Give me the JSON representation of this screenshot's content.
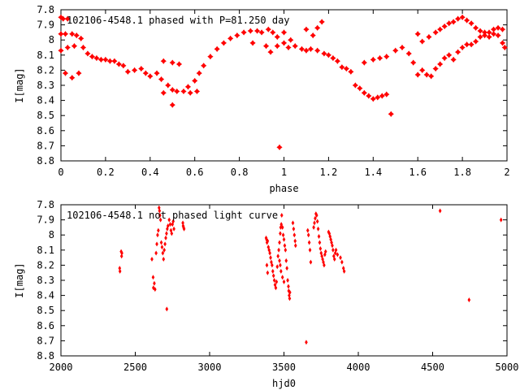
{
  "chart_data": [
    {
      "type": "scatter",
      "title": "102106-4548.1 phased with P=81.250 day",
      "xlabel": "phase",
      "ylabel": "I[mag]",
      "xlim": [
        0,
        2
      ],
      "ylim": [
        7.8,
        8.8
      ],
      "y_reversed": true,
      "x_ticks": [
        0,
        0.2,
        0.4,
        0.6,
        0.8,
        1,
        1.2,
        1.4,
        1.6,
        1.8,
        2
      ],
      "x_tick_labels": [
        "0",
        "0.2",
        "0.4",
        "0.6",
        "0.8",
        "1",
        "1.2",
        "1.4",
        "1.6",
        "1.8",
        "2"
      ],
      "y_ticks": [
        7.8,
        7.9,
        8,
        8.1,
        8.2,
        8.3,
        8.4,
        8.5,
        8.6,
        8.7,
        8.8
      ],
      "y_tick_labels": [
        "7.8",
        "7.9",
        "8",
        "8.1",
        "8.2",
        "8.3",
        "8.4",
        "8.5",
        "8.6",
        "8.7",
        "8.8"
      ],
      "marker_color": "#ff0000",
      "marker": "star",
      "points": [
        [
          0.0,
          7.85
        ],
        [
          0.01,
          7.86
        ],
        [
          0.03,
          7.86
        ],
        [
          0.0,
          7.96
        ],
        [
          0.02,
          7.96
        ],
        [
          0.05,
          7.96
        ],
        [
          0.07,
          7.97
        ],
        [
          0.09,
          7.99
        ],
        [
          0.0,
          8.07
        ],
        [
          0.03,
          8.05
        ],
        [
          0.06,
          8.04
        ],
        [
          0.1,
          8.05
        ],
        [
          0.12,
          8.09
        ],
        [
          0.14,
          8.11
        ],
        [
          0.16,
          8.12
        ],
        [
          0.18,
          8.13
        ],
        [
          0.2,
          8.13
        ],
        [
          0.22,
          8.14
        ],
        [
          0.24,
          8.14
        ],
        [
          0.26,
          8.16
        ],
        [
          0.28,
          8.17
        ],
        [
          0.3,
          8.21
        ],
        [
          0.33,
          8.2
        ],
        [
          0.36,
          8.19
        ],
        [
          0.38,
          8.22
        ],
        [
          0.4,
          8.24
        ],
        [
          0.43,
          8.22
        ],
        [
          0.45,
          8.26
        ],
        [
          0.48,
          8.3
        ],
        [
          0.5,
          8.33
        ],
        [
          0.52,
          8.34
        ],
        [
          0.55,
          8.34
        ],
        [
          0.58,
          8.35
        ],
        [
          0.61,
          8.34
        ],
        [
          0.46,
          8.14
        ],
        [
          0.5,
          8.15
        ],
        [
          0.53,
          8.16
        ],
        [
          0.57,
          8.31
        ],
        [
          0.6,
          8.27
        ],
        [
          0.62,
          8.22
        ],
        [
          0.64,
          8.17
        ],
        [
          0.67,
          8.11
        ],
        [
          0.7,
          8.06
        ],
        [
          0.73,
          8.02
        ],
        [
          0.76,
          7.99
        ],
        [
          0.79,
          7.97
        ],
        [
          0.82,
          7.95
        ],
        [
          0.85,
          7.94
        ],
        [
          0.88,
          7.94
        ],
        [
          0.9,
          7.95
        ],
        [
          0.93,
          7.93
        ],
        [
          0.95,
          7.95
        ],
        [
          0.97,
          7.98
        ],
        [
          1.0,
          8.02
        ],
        [
          1.02,
          8.05
        ],
        [
          1.05,
          8.04
        ],
        [
          1.08,
          8.06
        ],
        [
          1.1,
          8.07
        ],
        [
          1.12,
          8.06
        ],
        [
          1.15,
          8.07
        ],
        [
          1.18,
          8.09
        ],
        [
          1.2,
          8.1
        ],
        [
          1.22,
          8.12
        ],
        [
          1.24,
          8.14
        ],
        [
          1.26,
          8.18
        ],
        [
          1.28,
          8.19
        ],
        [
          1.3,
          8.21
        ],
        [
          1.32,
          8.3
        ],
        [
          1.34,
          8.32
        ],
        [
          1.36,
          8.35
        ],
        [
          1.38,
          8.37
        ],
        [
          1.4,
          8.39
        ],
        [
          1.42,
          8.38
        ],
        [
          1.44,
          8.37
        ],
        [
          1.46,
          8.36
        ],
        [
          1.48,
          8.49
        ],
        [
          1.36,
          8.15
        ],
        [
          1.4,
          8.13
        ],
        [
          1.43,
          8.12
        ],
        [
          1.46,
          8.11
        ],
        [
          1.5,
          8.07
        ],
        [
          1.53,
          8.05
        ],
        [
          1.56,
          8.09
        ],
        [
          1.58,
          8.15
        ],
        [
          1.6,
          8.23
        ],
        [
          1.62,
          8.2
        ],
        [
          1.64,
          8.23
        ],
        [
          1.66,
          8.24
        ],
        [
          1.68,
          8.19
        ],
        [
          1.7,
          8.16
        ],
        [
          1.72,
          8.12
        ],
        [
          1.74,
          8.1
        ],
        [
          1.76,
          8.13
        ],
        [
          1.78,
          8.08
        ],
        [
          1.8,
          8.05
        ],
        [
          1.82,
          8.03
        ],
        [
          1.84,
          8.03
        ],
        [
          1.86,
          8.01
        ],
        [
          1.88,
          7.98
        ],
        [
          1.9,
          7.97
        ],
        [
          1.92,
          7.98
        ],
        [
          1.94,
          7.96
        ],
        [
          1.96,
          7.97
        ],
        [
          1.98,
          8.02
        ],
        [
          1.99,
          8.05
        ],
        [
          1.6,
          7.96
        ],
        [
          1.62,
          8.01
        ],
        [
          1.65,
          7.98
        ],
        [
          1.68,
          7.95
        ],
        [
          1.7,
          7.93
        ],
        [
          1.72,
          7.91
        ],
        [
          1.74,
          7.89
        ],
        [
          1.76,
          7.88
        ],
        [
          1.78,
          7.86
        ],
        [
          1.8,
          7.85
        ],
        [
          1.82,
          7.87
        ],
        [
          1.84,
          7.89
        ],
        [
          1.86,
          7.92
        ],
        [
          1.88,
          7.94
        ],
        [
          1.9,
          7.95
        ],
        [
          1.92,
          7.95
        ],
        [
          1.94,
          7.93
        ],
        [
          1.96,
          7.92
        ],
        [
          1.98,
          7.93
        ],
        [
          1.1,
          7.93
        ],
        [
          1.13,
          7.97
        ],
        [
          1.15,
          7.92
        ],
        [
          1.17,
          7.88
        ],
        [
          0.86,
          8.02
        ],
        [
          0.92,
          8.04
        ],
        [
          0.94,
          8.08
        ],
        [
          0.97,
          8.04
        ],
        [
          1.0,
          7.95
        ],
        [
          1.03,
          8.0
        ],
        [
          0.08,
          8.22
        ],
        [
          0.05,
          8.25
        ],
        [
          0.02,
          8.22
        ],
        [
          0.98,
          8.71
        ],
        [
          0.5,
          8.43
        ],
        [
          0.46,
          8.35
        ]
      ]
    },
    {
      "type": "scatter",
      "title": "102106-4548.1 not phased light curve",
      "xlabel": "hjd0",
      "ylabel": "I[mag]",
      "xlim": [
        2000,
        5000
      ],
      "ylim": [
        7.8,
        8.8
      ],
      "y_reversed": true,
      "x_ticks": [
        2000,
        2500,
        3000,
        3500,
        4000,
        4500,
        5000
      ],
      "x_tick_labels": [
        "2000",
        "2500",
        "3000",
        "3500",
        "4000",
        "4500",
        "5000"
      ],
      "y_ticks": [
        7.8,
        7.9,
        8,
        8.1,
        8.2,
        8.3,
        8.4,
        8.5,
        8.6,
        8.7,
        8.8
      ],
      "y_tick_labels": [
        "7.8",
        "7.9",
        "8",
        "8.1",
        "8.2",
        "8.3",
        "8.4",
        "8.5",
        "8.6",
        "8.7",
        "8.8"
      ],
      "marker_color": "#ff0000",
      "marker": "diamond",
      "points": [
        [
          2395,
          8.22
        ],
        [
          2397,
          8.24
        ],
        [
          2405,
          8.11
        ],
        [
          2408,
          8.14
        ],
        [
          2410,
          8.12
        ],
        [
          2612,
          8.16
        ],
        [
          2620,
          8.28
        ],
        [
          2622,
          8.35
        ],
        [
          2628,
          8.32
        ],
        [
          2633,
          8.36
        ],
        [
          2640,
          8.12
        ],
        [
          2645,
          8.06
        ],
        [
          2650,
          8.0
        ],
        [
          2655,
          7.97
        ],
        [
          2660,
          7.82
        ],
        [
          2663,
          7.84
        ],
        [
          2666,
          7.87
        ],
        [
          2670,
          7.9
        ],
        [
          2675,
          8.05
        ],
        [
          2680,
          8.08
        ],
        [
          2685,
          8.12
        ],
        [
          2690,
          8.16
        ],
        [
          2695,
          8.1
        ],
        [
          2700,
          8.06
        ],
        [
          2705,
          8.02
        ],
        [
          2710,
          7.99
        ],
        [
          2712,
          8.49
        ],
        [
          2715,
          7.96
        ],
        [
          2720,
          7.94
        ],
        [
          2728,
          7.9
        ],
        [
          2735,
          7.93
        ],
        [
          2740,
          7.97
        ],
        [
          2745,
          7.99
        ],
        [
          2750,
          7.93
        ],
        [
          2755,
          7.91
        ],
        [
          2760,
          7.96
        ],
        [
          2820,
          7.92
        ],
        [
          2822,
          7.94
        ],
        [
          2825,
          7.95
        ],
        [
          2828,
          7.96
        ],
        [
          3380,
          8.02
        ],
        [
          3383,
          8.03
        ],
        [
          3386,
          8.05
        ],
        [
          3390,
          8.04
        ],
        [
          3395,
          8.08
        ],
        [
          3400,
          8.1
        ],
        [
          3405,
          8.12
        ],
        [
          3410,
          8.15
        ],
        [
          3415,
          8.18
        ],
        [
          3420,
          8.2
        ],
        [
          3425,
          8.24
        ],
        [
          3430,
          8.27
        ],
        [
          3435,
          8.3
        ],
        [
          3440,
          8.33
        ],
        [
          3445,
          8.35
        ],
        [
          3450,
          8.31
        ],
        [
          3455,
          8.21
        ],
        [
          3460,
          8.14
        ],
        [
          3465,
          8.1
        ],
        [
          3470,
          8.05
        ],
        [
          3475,
          7.99
        ],
        [
          3478,
          7.95
        ],
        [
          3482,
          7.93
        ],
        [
          3485,
          7.87
        ],
        [
          3490,
          7.95
        ],
        [
          3495,
          8.0
        ],
        [
          3500,
          8.03
        ],
        [
          3505,
          8.07
        ],
        [
          3510,
          8.1
        ],
        [
          3515,
          8.17
        ],
        [
          3520,
          8.22
        ],
        [
          3525,
          8.3
        ],
        [
          3530,
          8.34
        ],
        [
          3532,
          8.37
        ],
        [
          3535,
          8.4
        ],
        [
          3538,
          8.42
        ],
        [
          3540,
          8.38
        ],
        [
          3560,
          7.92
        ],
        [
          3565,
          7.96
        ],
        [
          3570,
          8.0
        ],
        [
          3575,
          8.04
        ],
        [
          3578,
          8.07
        ],
        [
          3385,
          8.2
        ],
        [
          3390,
          8.25
        ],
        [
          3470,
          8.17
        ],
        [
          3475,
          8.2
        ],
        [
          3480,
          8.24
        ],
        [
          3490,
          8.28
        ],
        [
          3500,
          8.31
        ],
        [
          3650,
          8.71
        ],
        [
          3660,
          7.97
        ],
        [
          3665,
          8.0
        ],
        [
          3670,
          8.05
        ],
        [
          3675,
          8.1
        ],
        [
          3680,
          8.18
        ],
        [
          3700,
          7.95
        ],
        [
          3705,
          7.92
        ],
        [
          3710,
          7.89
        ],
        [
          3715,
          7.86
        ],
        [
          3720,
          7.87
        ],
        [
          3725,
          7.91
        ],
        [
          3730,
          7.96
        ],
        [
          3735,
          8.01
        ],
        [
          3740,
          8.05
        ],
        [
          3745,
          8.09
        ],
        [
          3750,
          8.12
        ],
        [
          3755,
          8.14
        ],
        [
          3760,
          8.16
        ],
        [
          3765,
          8.18
        ],
        [
          3770,
          8.2
        ],
        [
          3775,
          8.13
        ],
        [
          3780,
          8.11
        ],
        [
          3800,
          7.98
        ],
        [
          3805,
          7.99
        ],
        [
          3810,
          8.01
        ],
        [
          3815,
          8.03
        ],
        [
          3820,
          8.05
        ],
        [
          3825,
          8.07
        ],
        [
          3830,
          8.1
        ],
        [
          3835,
          8.14
        ],
        [
          3840,
          8.16
        ],
        [
          3845,
          8.12
        ],
        [
          3850,
          8.1
        ],
        [
          3860,
          8.13
        ],
        [
          3880,
          8.15
        ],
        [
          3890,
          8.18
        ],
        [
          3900,
          8.22
        ],
        [
          3905,
          8.24
        ],
        [
          4550,
          7.84
        ],
        [
          4745,
          8.43
        ],
        [
          4960,
          7.9
        ]
      ]
    }
  ]
}
